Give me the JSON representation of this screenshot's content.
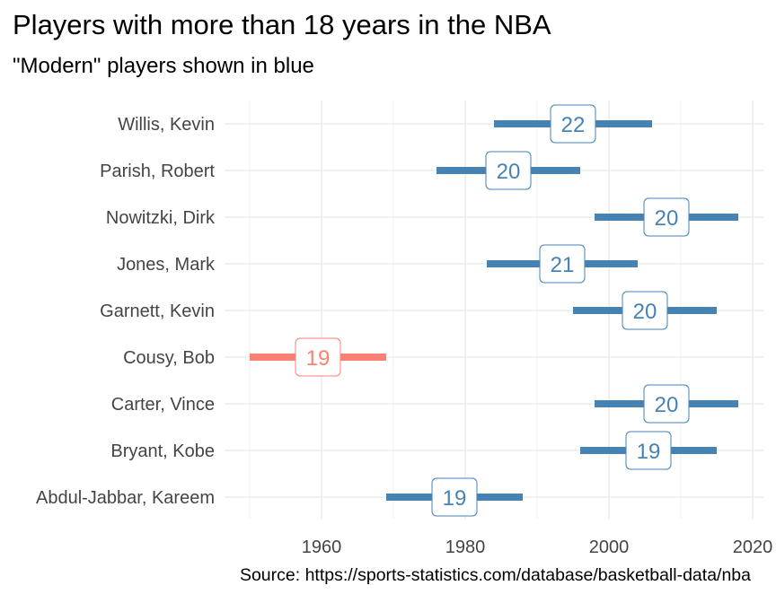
{
  "title": "Players with more than 18 years in the NBA",
  "subtitle": "\"Modern\" players shown in blue",
  "caption": "Source: https://sports-statistics.com/database/basketball-data/nba",
  "colors": {
    "modern": "#4682b4",
    "older": "#fa8072",
    "grid": "#ebebeb"
  },
  "chart_data": {
    "type": "range-bar",
    "title": "Players with more than 18 years in the NBA",
    "subtitle": "\"Modern\" players shown in blue",
    "xlim": [
      1946,
      2022
    ],
    "x_ticks": [
      1960,
      1980,
      2000,
      2020
    ],
    "grid": true,
    "players": [
      {
        "name": "Willis, Kevin",
        "start": 1984,
        "end": 2006,
        "years": 22,
        "modern": true
      },
      {
        "name": "Parish, Robert",
        "start": 1976,
        "end": 1996,
        "years": 20,
        "modern": true
      },
      {
        "name": "Nowitzki, Dirk",
        "start": 1998,
        "end": 2018,
        "years": 20,
        "modern": true
      },
      {
        "name": "Jones, Mark",
        "start": 1983,
        "end": 2004,
        "years": 21,
        "modern": true
      },
      {
        "name": "Garnett, Kevin",
        "start": 1995,
        "end": 2015,
        "years": 20,
        "modern": true
      },
      {
        "name": "Cousy, Bob",
        "start": 1950,
        "end": 1969,
        "years": 19,
        "modern": false
      },
      {
        "name": "Carter, Vince",
        "start": 1998,
        "end": 2018,
        "years": 20,
        "modern": true
      },
      {
        "name": "Bryant, Kobe",
        "start": 1996,
        "end": 2015,
        "years": 19,
        "modern": true
      },
      {
        "name": "Abdul-Jabbar, Kareem",
        "start": 1969,
        "end": 1988,
        "years": 19,
        "modern": true
      }
    ]
  }
}
